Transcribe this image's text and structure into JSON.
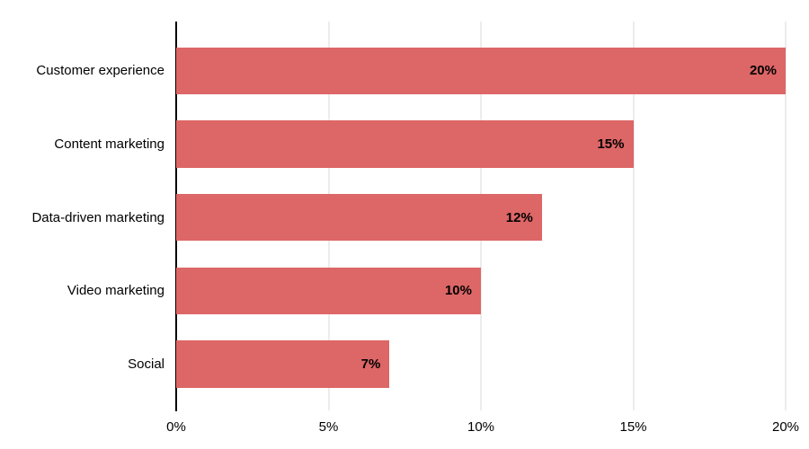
{
  "chart_data": {
    "type": "bar",
    "orientation": "horizontal",
    "title": "",
    "xlabel": "",
    "ylabel": "",
    "categories": [
      "Customer experience",
      "Content marketing",
      "Data-driven marketing",
      "Video marketing",
      "Social"
    ],
    "values": [
      20,
      15,
      12,
      10,
      7
    ],
    "value_labels": [
      "20%",
      "15%",
      "12%",
      "10%",
      "7%"
    ],
    "xlim": [
      0,
      20
    ],
    "x_ticks": [
      "0%",
      "5%",
      "10%",
      "15%",
      "20%"
    ],
    "x_tick_values": [
      0,
      5,
      10,
      15,
      20
    ],
    "grid": "vertical-only",
    "legend": "none",
    "colors": {
      "bar": "#dd6666",
      "grid": "#d9d9d9",
      "axis": "#000000",
      "text": "#000000",
      "value_label": "#000000",
      "background": "#ffffff"
    }
  }
}
